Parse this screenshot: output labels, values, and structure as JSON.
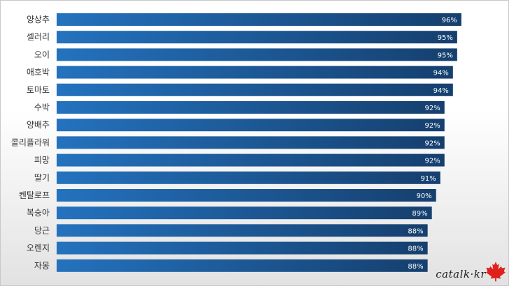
{
  "chart_data": {
    "type": "bar",
    "orientation": "horizontal",
    "categories": [
      "양상추",
      "셀러리",
      "오이",
      "애호박",
      "토마토",
      "수박",
      "양배추",
      "콜리플라워",
      "피망",
      "딸기",
      "켄탈로프",
      "복숭아",
      "당근",
      "오렌지",
      "자몽"
    ],
    "values": [
      96,
      95,
      95,
      94,
      94,
      92,
      92,
      92,
      92,
      91,
      90,
      89,
      88,
      88,
      88
    ],
    "value_labels": [
      "96%",
      "95%",
      "95%",
      "94%",
      "94%",
      "92%",
      "92%",
      "92%",
      "92%",
      "91%",
      "90%",
      "89%",
      "88%",
      "88%",
      "88%"
    ],
    "unit": "%",
    "xlim": [
      0,
      100
    ],
    "grid": false,
    "legend": "none",
    "bar_color_start": "#2472be",
    "bar_color_end": "#153f6e"
  },
  "watermark": {
    "text": "catalk·kr",
    "icon": "maple-leaf-icon",
    "icon_color": "#e0201b"
  }
}
